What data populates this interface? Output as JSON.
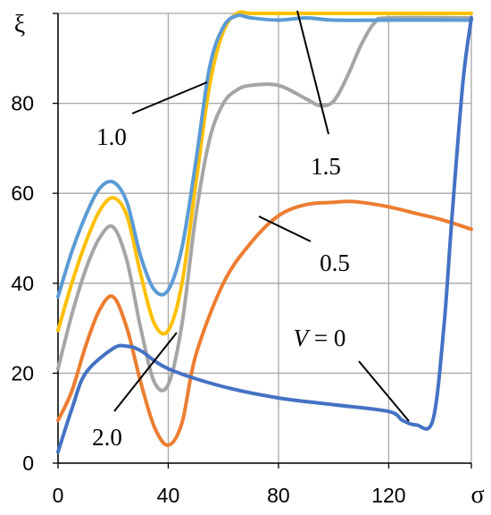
{
  "chart_data": {
    "type": "line",
    "xlabel": "σ",
    "ylabel": "ξ",
    "xlim": [
      0,
      150
    ],
    "ylim": [
      0,
      100
    ],
    "xticks": [
      "0",
      "40",
      "80",
      "120"
    ],
    "yticks": [
      "0",
      "20",
      "40",
      "60",
      "80"
    ],
    "grid": true,
    "series": [
      {
        "name": "V = 0",
        "color": "#4472C4",
        "x": [
          0,
          5,
          10,
          20,
          25,
          30,
          40,
          60,
          80,
          100,
          120,
          125,
          130,
          136,
          140,
          143,
          147,
          150
        ],
        "y": [
          2.5,
          12,
          20,
          25.5,
          26,
          25,
          21,
          17,
          14.5,
          13,
          11.5,
          9.5,
          8.5,
          9.5,
          30,
          55,
          85,
          99
        ]
      },
      {
        "name": "0.5",
        "color": "#ED7D31",
        "x": [
          0,
          5,
          10,
          15,
          20,
          25,
          30,
          35,
          40,
          45,
          50,
          60,
          70,
          80,
          90,
          100,
          105,
          110,
          120,
          130,
          140,
          150
        ],
        "y": [
          9.5,
          16,
          26,
          34,
          37,
          30,
          18,
          8,
          4,
          9,
          24,
          40,
          49,
          55,
          57.5,
          58,
          58.2,
          58,
          57,
          55.5,
          54,
          52
        ]
      },
      {
        "name": "1.0",
        "color": "#5B9BD5",
        "x": [
          0,
          5,
          10,
          15,
          20,
          25,
          30,
          35,
          40,
          45,
          50,
          55,
          60,
          65,
          70,
          80,
          90,
          100,
          120,
          150
        ],
        "y": [
          37,
          47,
          55,
          61,
          62.5,
          58,
          46,
          38.5,
          38.5,
          48,
          67,
          88,
          97,
          99.5,
          99,
          98.5,
          99,
          98.5,
          98.5,
          98.5
        ]
      },
      {
        "name": "1.5",
        "color": "#FFC000",
        "x": [
          0,
          5,
          10,
          15,
          20,
          25,
          30,
          35,
          40,
          45,
          50,
          55,
          60,
          65,
          70,
          80,
          100,
          120,
          150
        ],
        "y": [
          29.5,
          40,
          49,
          56,
          59,
          55,
          42,
          31,
          29.5,
          40,
          62,
          84,
          96,
          100,
          100,
          100,
          100,
          100,
          100
        ]
      },
      {
        "name": "2.0",
        "color": "#A5A5A5",
        "x": [
          0,
          5,
          10,
          15,
          20,
          25,
          30,
          35,
          40,
          45,
          50,
          55,
          60,
          65,
          70,
          80,
          90,
          95,
          100,
          105,
          110,
          115,
          120,
          150
        ],
        "y": [
          21,
          33,
          43,
          50,
          52.5,
          45,
          30,
          18,
          17.5,
          31,
          55,
          72,
          80,
          83,
          84,
          84,
          81,
          79.5,
          80.5,
          86,
          93,
          98,
          99,
          99
        ]
      }
    ],
    "annotations": [
      {
        "text": "1.0",
        "series": "1.0"
      },
      {
        "text": "1.5",
        "series": "1.5"
      },
      {
        "text": "0.5",
        "series": "0.5"
      },
      {
        "text": "2.0",
        "series": "2.0"
      },
      {
        "text": "V = 0",
        "series": "V = 0"
      }
    ]
  }
}
